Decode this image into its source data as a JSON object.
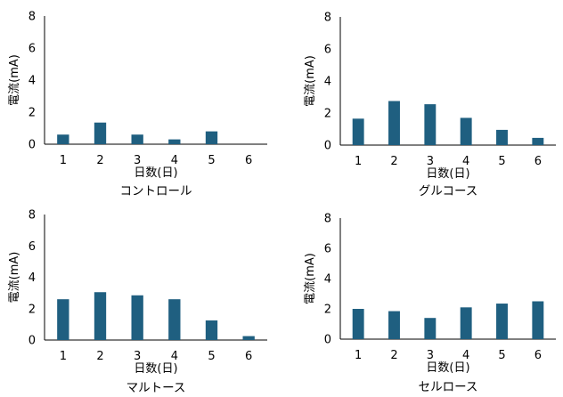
{
  "colors": {
    "bar": "#1f5f80",
    "axis": "#000000",
    "background": "#ffffff"
  },
  "chart_data": [
    {
      "type": "bar",
      "caption": "コントロール",
      "xlabel": "日数(日)",
      "ylabel": "電流(mA)",
      "categories": [
        "1",
        "2",
        "3",
        "4",
        "5",
        "6"
      ],
      "values": [
        0.6,
        1.35,
        0.6,
        0.3,
        0.8,
        0
      ],
      "ylim": [
        0,
        8
      ],
      "yticks": [
        "0",
        "2",
        "4",
        "6",
        "8"
      ],
      "grid": false,
      "legend": "none"
    },
    {
      "type": "bar",
      "caption": "グルコース",
      "xlabel": "日数(日)",
      "ylabel": "電流(mA)",
      "categories": [
        "1",
        "2",
        "3",
        "4",
        "5",
        "6"
      ],
      "values": [
        1.65,
        2.75,
        2.55,
        1.7,
        0.95,
        0.45
      ],
      "ylim": [
        0,
        8
      ],
      "yticks": [
        "0",
        "2",
        "4",
        "6",
        "8"
      ],
      "grid": false,
      "legend": "none"
    },
    {
      "type": "bar",
      "caption": "マルトース",
      "xlabel": "日数(日)",
      "ylabel": "電流(mA)",
      "categories": [
        "1",
        "2",
        "3",
        "4",
        "5",
        "6"
      ],
      "values": [
        2.6,
        3.05,
        2.85,
        2.6,
        1.25,
        0.25
      ],
      "ylim": [
        0,
        8
      ],
      "yticks": [
        "0",
        "2",
        "4",
        "6",
        "8"
      ],
      "grid": false,
      "legend": "none"
    },
    {
      "type": "bar",
      "caption": "セルロース",
      "xlabel": "日数(日)",
      "ylabel": "電流(mA)",
      "categories": [
        "1",
        "2",
        "3",
        "4",
        "5",
        "6"
      ],
      "values": [
        2.0,
        1.85,
        1.4,
        2.1,
        2.35,
        2.5
      ],
      "ylim": [
        0,
        8
      ],
      "yticks": [
        "0",
        "2",
        "4",
        "6",
        "8"
      ],
      "grid": false,
      "legend": "none"
    }
  ]
}
